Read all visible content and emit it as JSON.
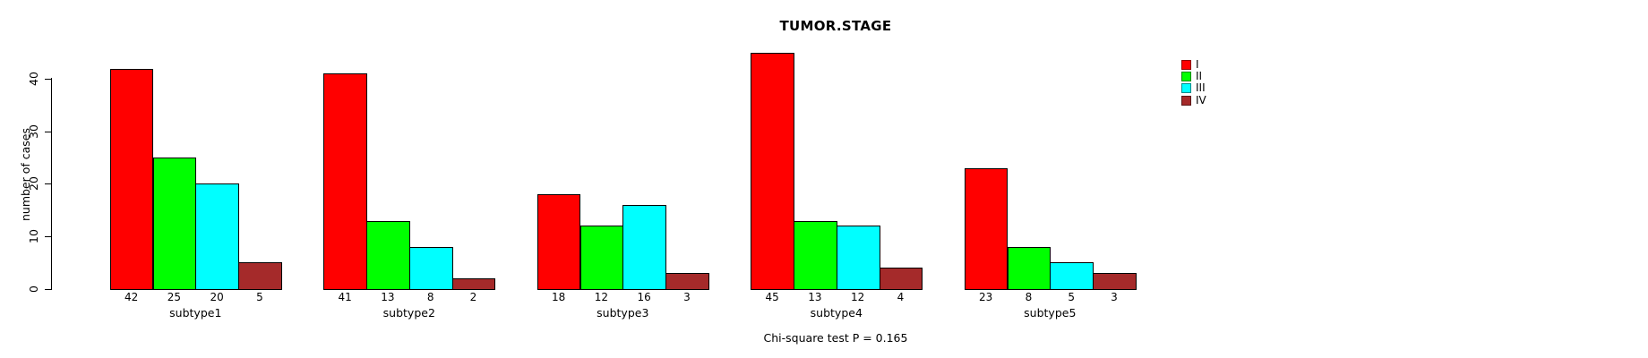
{
  "title": "TUMOR.STAGE",
  "footnote": "Chi-square test P = 0.165",
  "colors": {
    "stage_I": "#FF0000",
    "stage_II": "#00FF00",
    "stage_III": "#00FFFF",
    "stage_IV": "#A52A2A",
    "axis": "#000000",
    "background": "#FFFFFF"
  },
  "legend": {
    "items": [
      {
        "label": "I",
        "color": "#FF0000"
      },
      {
        "label": "II",
        "color": "#00FF00"
      },
      {
        "label": "III",
        "color": "#00FFFF"
      },
      {
        "label": "IV",
        "color": "#A52A2A"
      }
    ]
  },
  "chart_data": {
    "type": "bar",
    "title": "TUMOR.STAGE",
    "ylabel": "number of cases",
    "xlabel": "",
    "categories": [
      "subtype1",
      "subtype2",
      "subtype3",
      "subtype4",
      "subtype5"
    ],
    "series": [
      {
        "name": "I",
        "color": "#FF0000",
        "values": [
          42,
          41,
          18,
          45,
          23
        ]
      },
      {
        "name": "II",
        "color": "#00FF00",
        "values": [
          25,
          13,
          12,
          13,
          8
        ]
      },
      {
        "name": "III",
        "color": "#00FFFF",
        "values": [
          20,
          8,
          16,
          12,
          5
        ]
      },
      {
        "name": "IV",
        "color": "#A52A2A",
        "values": [
          5,
          2,
          3,
          4,
          3
        ]
      }
    ],
    "bar_value_labels": [
      [
        42,
        25,
        20,
        5
      ],
      [
        41,
        13,
        8,
        2
      ],
      [
        18,
        12,
        16,
        3
      ],
      [
        45,
        13,
        12,
        4
      ],
      [
        23,
        8,
        5,
        3
      ]
    ],
    "yticks": [
      0,
      10,
      20,
      30,
      40
    ],
    "ylim": [
      0,
      45
    ],
    "grid": false,
    "legend_position": "right",
    "annotation": "Chi-square test P = 0.165"
  }
}
